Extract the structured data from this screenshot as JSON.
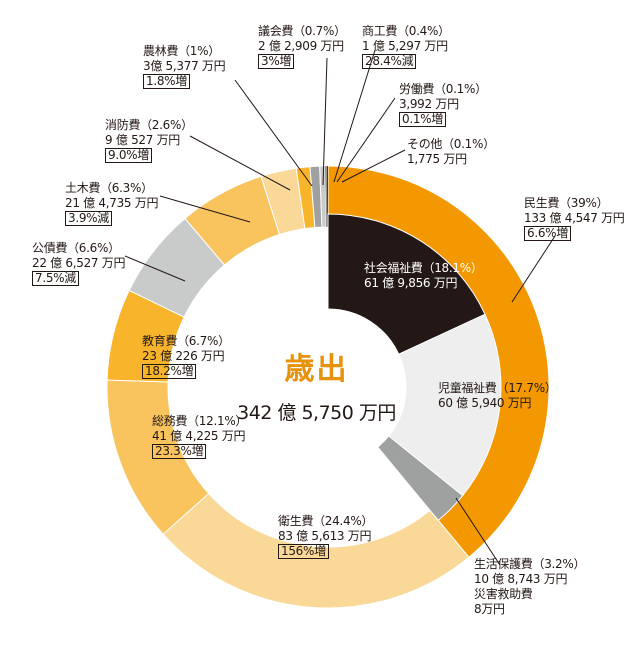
{
  "chart_data": {
    "type": "pie",
    "title": "歳出",
    "total": "342 億 5,750 万円",
    "outer_ring": [
      {
        "name": "民生費",
        "percent": 39.0,
        "label": "民生費（39%）",
        "amount": "133 億 4,547 万円",
        "change": "6.6%増",
        "color": "#f39800"
      },
      {
        "name": "衛生費",
        "percent": 24.4,
        "label": "衛生費（24.4%）",
        "amount": "83 億 5,613 万円",
        "change": "156%増",
        "color": "#fad998"
      },
      {
        "name": "総務費",
        "percent": 12.1,
        "label": "総務費（12.1%）",
        "amount": "41 億 4,225 万円",
        "change": "23.3%増",
        "color": "#f9c35e"
      },
      {
        "name": "教育費",
        "percent": 6.7,
        "label": "教育費（6.7%）",
        "amount": "23 億 226 万円",
        "change": "18.2%増",
        "color": "#f8b52b"
      },
      {
        "name": "公債費",
        "percent": 6.6,
        "label": "公債費（6.6%）",
        "amount": "22 億 6,527 万円",
        "change": "7.5%減",
        "color": "#c9caca"
      },
      {
        "name": "土木費",
        "percent": 6.3,
        "label": "土木費（6.3%）",
        "amount": "21 億 4,735 万円",
        "change": "3.9%減",
        "color": "#f9c35e"
      },
      {
        "name": "消防費",
        "percent": 2.6,
        "label": "消防費（2.6%）",
        "amount": "9 億 527 万円",
        "change": "9.0%増",
        "color": "#fad998"
      },
      {
        "name": "農林費",
        "percent": 1.0,
        "label": "農林費（1%）",
        "amount": "3億 5,377 万円",
        "change": "1.8%増",
        "color": "#f8b52b"
      },
      {
        "name": "議会費",
        "percent": 0.7,
        "label": "議会費（0.7%）",
        "amount": "2 億 2,909 万円",
        "change": "3%増",
        "color": "#9fa0a0"
      },
      {
        "name": "商工費",
        "percent": 0.4,
        "label": "商工費（0.4%）",
        "amount": "1 億 5,297 万円",
        "change": "28.4%減",
        "color": "#c9caca"
      },
      {
        "name": "労働費",
        "percent": 0.1,
        "label": "労働費（0.1%）",
        "amount": "3,992 万円",
        "change": "0.1%増",
        "color": "#595757"
      },
      {
        "name": "その他",
        "percent": 0.1,
        "label": "その他（0.1%）",
        "amount": "1,775 万円",
        "change": "",
        "color": "#231815"
      }
    ],
    "inner_ring": [
      {
        "name": "社会福祉費",
        "percent": 18.1,
        "label": "社会福祉費（18.1%）",
        "amount": "61 億 9,856 万円",
        "color": "#231815"
      },
      {
        "name": "児童福祉費",
        "percent": 17.7,
        "label": "児童福祉費（17.7%）",
        "amount": "60 億 5,940 万円",
        "color": "#eeeeee"
      },
      {
        "name": "生活保護費",
        "percent": 3.2,
        "label": "生活保護費（3.2%）",
        "amount": "10 億 8,743 万円",
        "color": "#9fa0a0"
      },
      {
        "name": "災害救助費",
        "percent": 0.0,
        "label": "災害救助費",
        "amount": "8万円",
        "color": "#ffffff"
      }
    ]
  }
}
